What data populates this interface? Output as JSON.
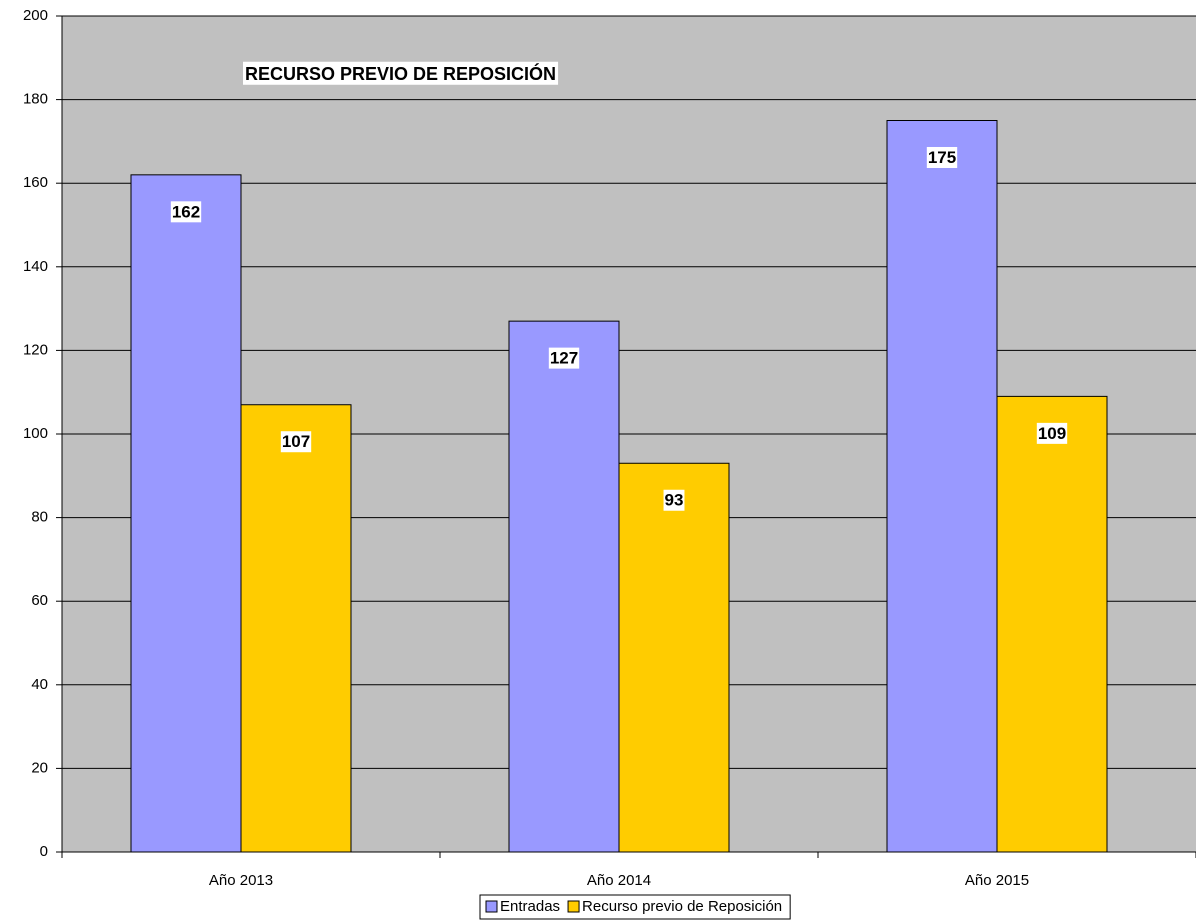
{
  "chart_data": {
    "type": "bar",
    "title": "RECURSO PREVIO DE REPOSICIÓN",
    "categories": [
      "Año 2013",
      "Año 2014",
      "Año 2015"
    ],
    "series": [
      {
        "name": "Entradas",
        "color": "#9999ff",
        "values": [
          162,
          127,
          175
        ]
      },
      {
        "name": "Recurso previo de Reposición",
        "color": "#ffcc00",
        "values": [
          107,
          93,
          109
        ]
      }
    ],
    "ylim": [
      0,
      200
    ],
    "yticks": [
      0,
      20,
      40,
      60,
      80,
      100,
      120,
      140,
      160,
      180,
      200
    ],
    "grid": true,
    "legend": "bottom"
  }
}
